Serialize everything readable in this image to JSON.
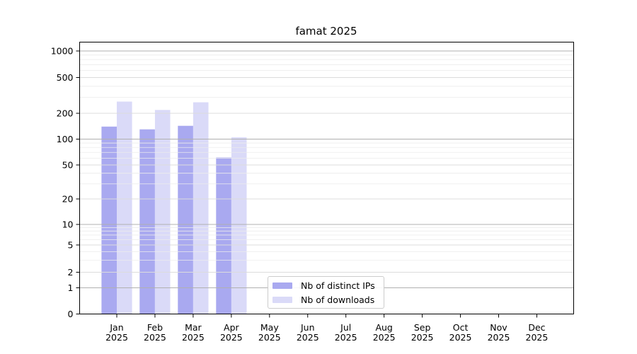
{
  "chart_data": {
    "type": "bar",
    "title": "famat 2025",
    "x_tick_labels": [
      {
        "line1": "Jan",
        "line2": "2025"
      },
      {
        "line1": "Feb",
        "line2": "2025"
      },
      {
        "line1": "Mar",
        "line2": "2025"
      },
      {
        "line1": "Apr",
        "line2": "2025"
      },
      {
        "line1": "May",
        "line2": "2025"
      },
      {
        "line1": "Jun",
        "line2": "2025"
      },
      {
        "line1": "Jul",
        "line2": "2025"
      },
      {
        "line1": "Aug",
        "line2": "2025"
      },
      {
        "line1": "Sep",
        "line2": "2025"
      },
      {
        "line1": "Oct",
        "line2": "2025"
      },
      {
        "line1": "Nov",
        "line2": "2025"
      },
      {
        "line1": "Dec",
        "line2": "2025"
      }
    ],
    "y_ticks": [
      0,
      1,
      2,
      5,
      10,
      20,
      50,
      100,
      200,
      500,
      1000
    ],
    "y_scale": "log-like",
    "ylim": [
      0,
      1250
    ],
    "grid": true,
    "legend_position": "bottom-center",
    "series": [
      {
        "name": "Nb of distinct IPs",
        "color": "#a9a9f0",
        "values": [
          140,
          130,
          143,
          61,
          null,
          null,
          null,
          null,
          null,
          null,
          null,
          null
        ]
      },
      {
        "name": "Nb of downloads",
        "color": "#dadaf8",
        "values": [
          270,
          218,
          265,
          105,
          null,
          null,
          null,
          null,
          null,
          null,
          null,
          null
        ]
      }
    ]
  },
  "colors": {
    "background": "#ffffff",
    "axis": "#000000",
    "grid_major": "#b0b0b0",
    "grid_labeled": "#dcdcdc",
    "grid_minor": "#ececec",
    "legend_border": "#cccccc",
    "text": "#000000"
  }
}
